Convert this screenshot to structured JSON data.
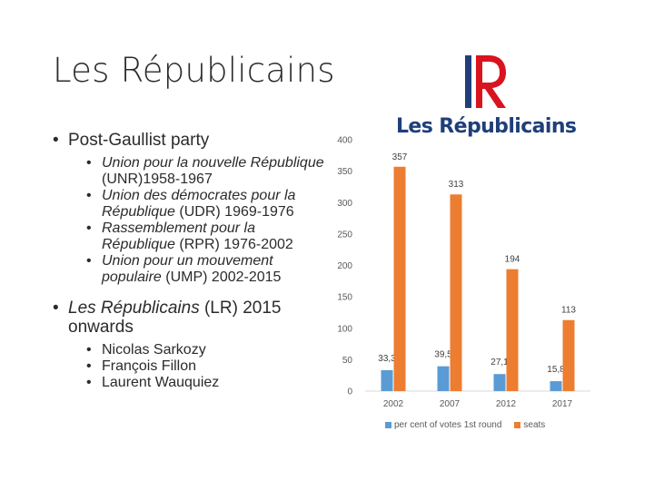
{
  "slide": {
    "title": "Les Républicains",
    "bullets": [
      {
        "text": "Post-Gaullist party",
        "sub": [
          {
            "italic": "Union pour la nouvelle République",
            "rest": " (UNR)1958-1967"
          },
          {
            "italic": "Union des démocrates pour la République",
            "rest": " (UDR) 1969-1976"
          },
          {
            "italic": "Rassemblement pour la République",
            "rest": " (RPR) 1976-2002"
          },
          {
            "italic": "Union pour un mouvement populaire",
            "rest": " (UMP) 2002-2015"
          }
        ]
      },
      {
        "italic": "Les Républicains",
        "rest": " (LR) 2015 onwards",
        "sub": [
          {
            "text": "Nicolas Sarkozy"
          },
          {
            "text": "François Fillon"
          },
          {
            "text": "Laurent Wauquiez"
          }
        ]
      }
    ]
  },
  "logo": {
    "mark": "LR",
    "text": "Les Républicains",
    "colors": {
      "blue": "#1f3f7a",
      "red": "#d9141e"
    }
  },
  "chart_data": {
    "type": "bar",
    "categories": [
      "2002",
      "2007",
      "2012",
      "2017"
    ],
    "series": [
      {
        "name": "per cent of votes 1st round",
        "values": [
          33.3,
          39.5,
          27.1,
          15.8
        ],
        "labels": [
          "33,3",
          "39,5",
          "27,1",
          "15,8"
        ],
        "color": "#5b9bd5"
      },
      {
        "name": "seats",
        "values": [
          357,
          313,
          194,
          113
        ],
        "labels": [
          "357",
          "313",
          "194",
          "113"
        ],
        "color": "#ed7d31"
      }
    ],
    "y_ticks": [
      "0",
      "50",
      "100",
      "150",
      "200",
      "250",
      "300",
      "350",
      "400"
    ],
    "ylim": [
      0,
      400
    ],
    "grid": false,
    "legend": "bottom"
  }
}
